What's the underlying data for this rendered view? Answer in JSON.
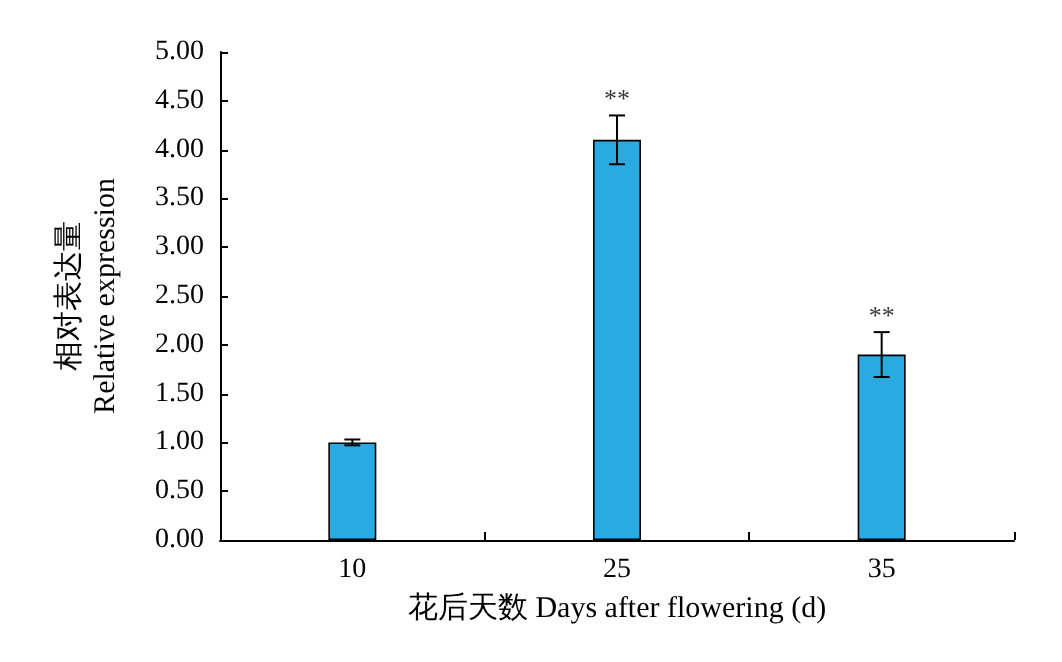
{
  "chart_data": {
    "type": "bar",
    "xlabel": "花后天数 Days after flowering (d)",
    "ylabel": "相对表达量\nRelative expression",
    "categories": [
      "10",
      "25",
      "35"
    ],
    "values": [
      1.0,
      4.1,
      1.9
    ],
    "errors": [
      0.03,
      0.25,
      0.23
    ],
    "color": "#29abe2",
    "ylim": [
      0,
      5
    ],
    "yticks": [
      {
        "value": 0,
        "label": "0.00"
      },
      {
        "value": 0.5,
        "label": "0.50"
      },
      {
        "value": 1,
        "label": "1.00"
      },
      {
        "value": 1.5,
        "label": "1.50"
      },
      {
        "value": 2,
        "label": "2.00"
      },
      {
        "value": 2.5,
        "label": "2.50"
      },
      {
        "value": 3,
        "label": "3.00"
      },
      {
        "value": 3.5,
        "label": "3.50"
      },
      {
        "value": 4,
        "label": "4.00"
      },
      {
        "value": 4.5,
        "label": "4.50"
      },
      {
        "value": 5,
        "label": "5.00"
      }
    ],
    "annotations": [
      {
        "text": "**",
        "x": "25",
        "y": 4.35
      },
      {
        "text": "**",
        "x": "35",
        "y": 2.13
      }
    ],
    "grid": false
  }
}
